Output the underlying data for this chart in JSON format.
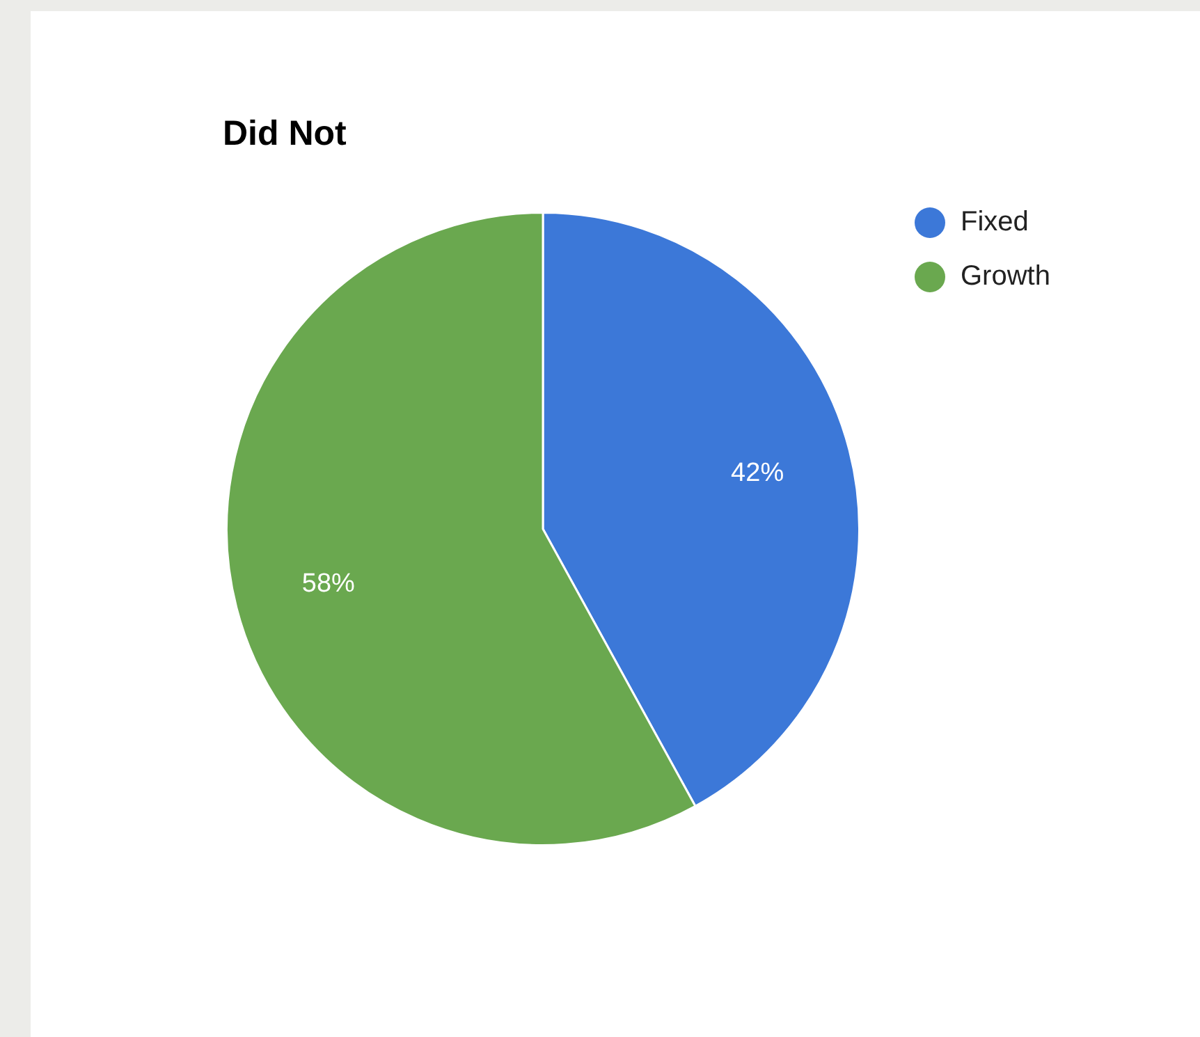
{
  "chart_data": {
    "type": "pie",
    "title": "Did Not",
    "categories": [
      "Fixed",
      "Growth"
    ],
    "values": [
      42,
      58
    ],
    "colors": [
      "#3c78d8",
      "#6aa84f"
    ],
    "value_labels": [
      "42%",
      "58%"
    ],
    "legend": "right"
  }
}
